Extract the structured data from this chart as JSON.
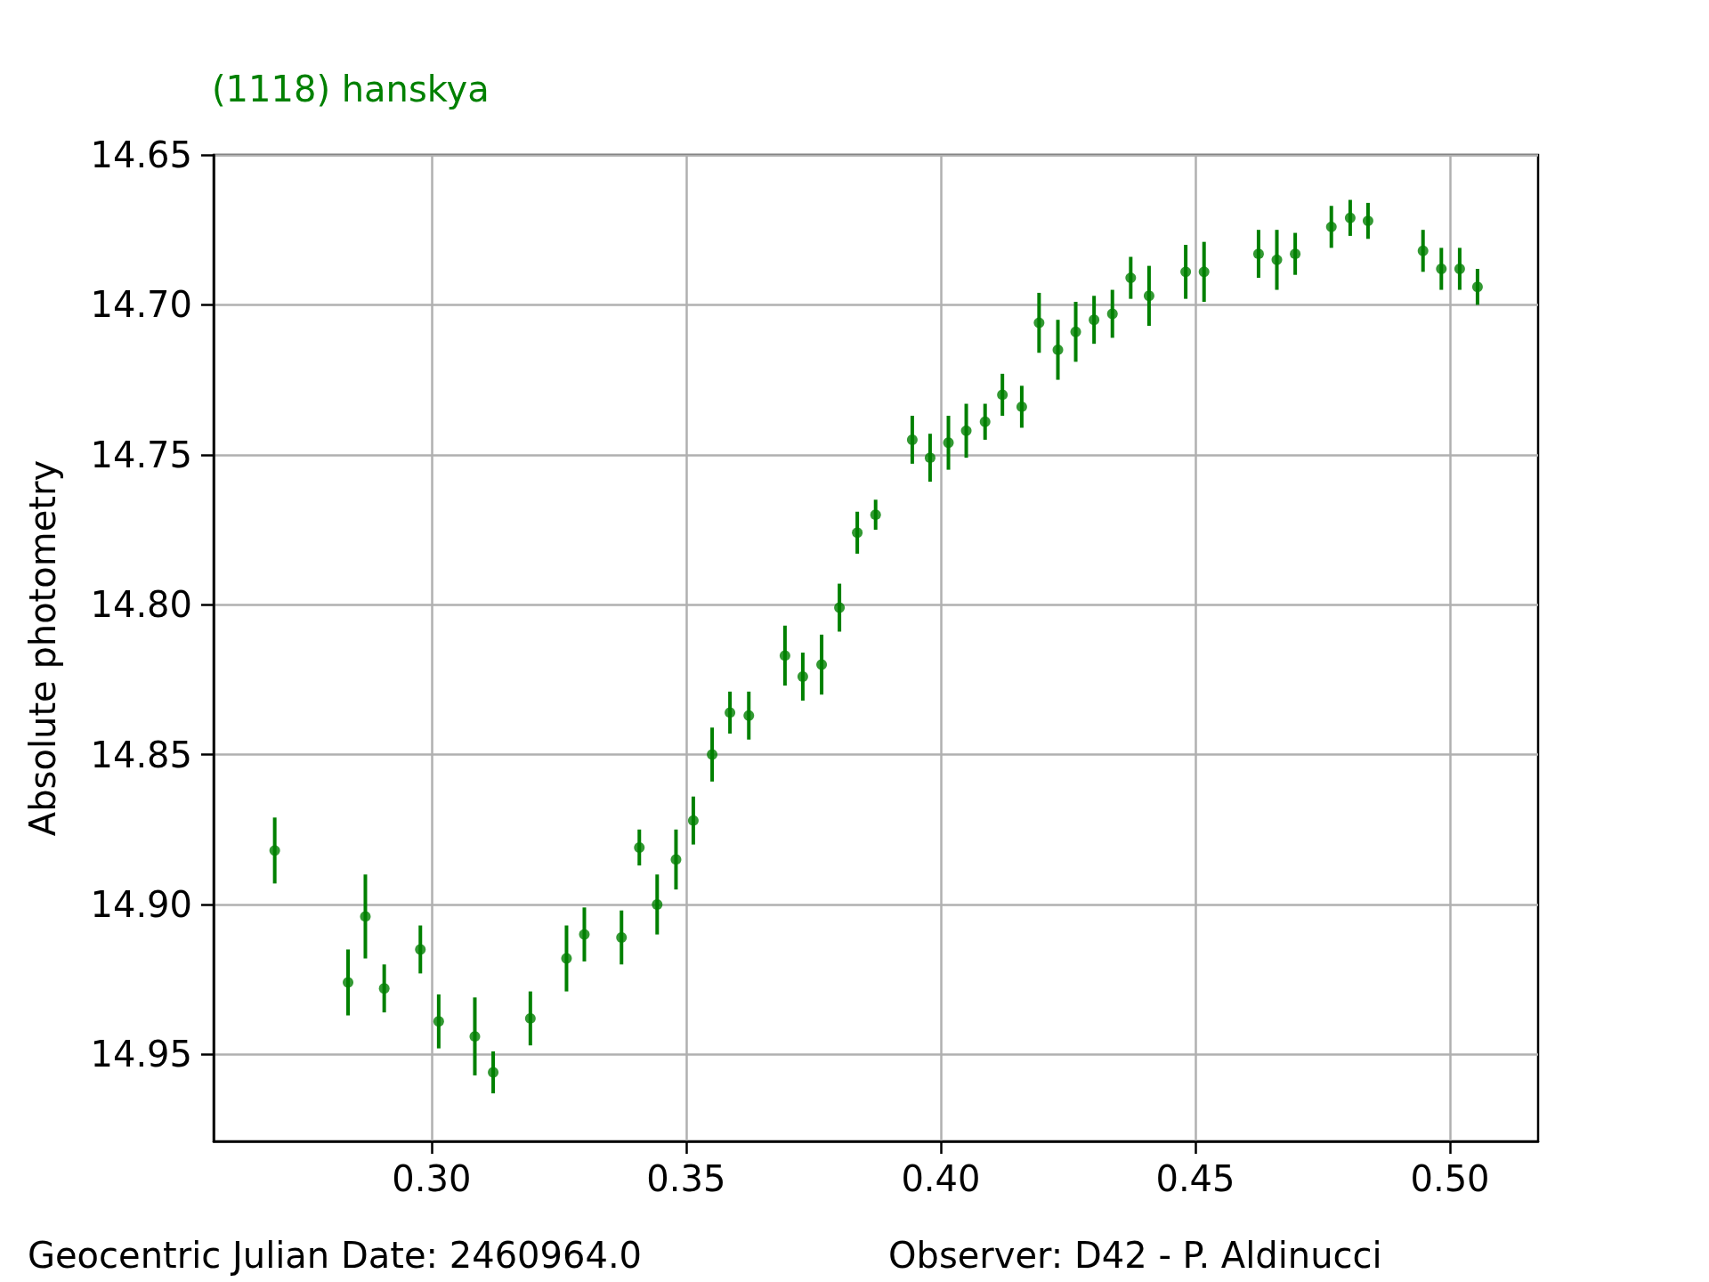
{
  "chart_data": {
    "type": "scatter",
    "title": "(1118) hanskya",
    "ylabel": "Absolute photometry",
    "annotations": [
      "Geocentric Julian Date: 2460964.0",
      "Observer: D42 - P. Aldinucci"
    ],
    "color": "#008000",
    "marker": "circle",
    "grid": true,
    "xlim": [
      0.2572,
      0.5173
    ],
    "ylim": [
      14.979,
      14.65
    ],
    "xticks": [
      {
        "value": 0.3,
        "label": "0.30"
      },
      0.35,
      {
        "value": 0.4,
        "label": "0.40"
      },
      0.45,
      {
        "value": 0.5,
        "label": "0.50"
      }
    ],
    "yticks": [
      14.65,
      {
        "value": 14.7,
        "label": "14.70"
      },
      14.75,
      {
        "value": 14.8,
        "label": "14.80"
      },
      14.85,
      {
        "value": 14.9,
        "label": "14.90"
      },
      14.95
    ],
    "x": [
      0.2692,
      0.2836,
      0.287,
      0.2907,
      0.2978,
      0.3014,
      0.3085,
      0.3121,
      0.3194,
      0.3265,
      0.33,
      0.3373,
      0.3408,
      0.3443,
      0.348,
      0.3514,
      0.3551,
      0.3586,
      0.3623,
      0.3694,
      0.3729,
      0.3766,
      0.3801,
      0.3836,
      0.3872,
      0.3944,
      0.3979,
      0.4015,
      0.405,
      0.4087,
      0.4121,
      0.4159,
      0.4193,
      0.423,
      0.4265,
      0.4301,
      0.4337,
      0.4373,
      0.4409,
      0.4481,
      0.4517,
      0.4624,
      0.466,
      0.4696,
      0.4767,
      0.4804,
      0.4839,
      0.4947,
      0.4983,
      0.5019,
      0.5054
    ],
    "values": [
      14.882,
      14.926,
      14.904,
      14.928,
      14.915,
      14.939,
      14.944,
      14.956,
      14.938,
      14.918,
      14.91,
      14.911,
      14.881,
      14.9,
      14.885,
      14.872,
      14.85,
      14.836,
      14.837,
      14.817,
      14.824,
      14.82,
      14.801,
      14.776,
      14.77,
      14.745,
      14.751,
      14.746,
      14.742,
      14.739,
      14.73,
      14.734,
      14.706,
      14.715,
      14.709,
      14.705,
      14.703,
      14.691,
      14.697,
      14.689,
      14.689,
      14.683,
      14.685,
      14.683,
      14.674,
      14.671,
      14.672,
      14.682,
      14.688,
      14.688,
      14.694
    ],
    "errors": [
      0.011,
      0.011,
      0.014,
      0.008,
      0.008,
      0.009,
      0.013,
      0.007,
      0.009,
      0.011,
      0.009,
      0.009,
      0.006,
      0.01,
      0.01,
      0.008,
      0.009,
      0.007,
      0.008,
      0.01,
      0.008,
      0.01,
      0.008,
      0.007,
      0.005,
      0.008,
      0.008,
      0.009,
      0.009,
      0.006,
      0.007,
      0.007,
      0.01,
      0.01,
      0.01,
      0.008,
      0.008,
      0.007,
      0.01,
      0.009,
      0.01,
      0.008,
      0.01,
      0.007,
      0.007,
      0.006,
      0.006,
      0.007,
      0.007,
      0.007,
      0.006
    ]
  }
}
